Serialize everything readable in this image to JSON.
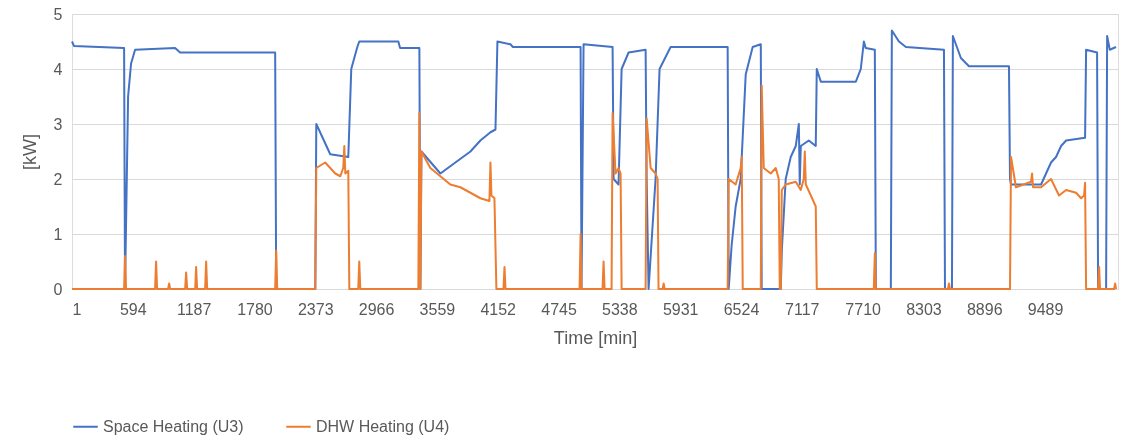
{
  "chart_data": {
    "type": "line",
    "xlabel": "Time [min]",
    "ylabel": "[kW]",
    "xlim": [
      1,
      10200
    ],
    "xticks": [
      1,
      594,
      1187,
      1780,
      2373,
      2966,
      3559,
      4152,
      4745,
      5338,
      5931,
      6524,
      7117,
      7710,
      8303,
      8896,
      9489
    ],
    "ylim": [
      0,
      5
    ],
    "yticks": [
      0,
      1,
      2,
      3,
      4,
      5
    ],
    "grid": "y",
    "legend": "bottom",
    "marker": "none",
    "line_style": "solid",
    "series": [
      {
        "name": "Space Heating (U3)",
        "color": "#4472c4",
        "x": [
          1,
          20,
          509,
          518,
          548,
          577,
          616,
          1006,
          1055,
          1982,
          1992,
          2373,
          2383,
          2519,
          2695,
          2724,
          2783,
          2802,
          3183,
          3200,
          3388,
          3398,
          3408,
          3593,
          3739,
          3886,
          3983,
          4081,
          4130,
          4149,
          4276,
          4300,
          4960,
          4969,
          4989,
          5272,
          5282,
          5330,
          5360,
          5428,
          5594,
          5604,
          5623,
          5691,
          5730,
          5838,
          6394,
          6404,
          6433,
          6472,
          6521,
          6570,
          6638,
          6717,
          6726,
          6912,
          6922,
          6960,
          7009,
          7058,
          7088,
          7097,
          7107,
          7185,
          7253,
          7263,
          7302,
          7644,
          7692,
          7722,
          7740,
          7829,
          7839,
          7985,
          7995,
          8064,
          8132,
          8503,
          8513,
          8581,
          8590,
          8668,
          8747,
          9137,
          9147,
          9157,
          9450,
          9547,
          9596,
          9645,
          9694,
          9879,
          9889,
          9996,
          10006,
          10084,
          10094,
          10120,
          10181
        ],
        "values": [
          4.5,
          4.42,
          4.38,
          0,
          3.5,
          4.1,
          4.35,
          4.38,
          4.3,
          4.3,
          0,
          0,
          3.0,
          2.45,
          2.4,
          4.0,
          4.4,
          4.5,
          4.5,
          4.38,
          4.38,
          0,
          2.5,
          2.1,
          2.3,
          2.5,
          2.7,
          2.85,
          2.9,
          4.5,
          4.45,
          4.4,
          4.4,
          0,
          4.45,
          4.4,
          2.0,
          1.9,
          4.0,
          4.3,
          4.35,
          2.0,
          0,
          2.0,
          4.0,
          4.4,
          4.4,
          0,
          0.8,
          1.5,
          2.0,
          3.9,
          4.4,
          4.45,
          0,
          0,
          0.7,
          2.0,
          2.4,
          2.6,
          3.0,
          1.9,
          2.6,
          2.7,
          2.6,
          4.0,
          3.77,
          3.77,
          4.0,
          4.5,
          4.38,
          4.35,
          0,
          0,
          4.7,
          4.5,
          4.4,
          4.35,
          0,
          0,
          4.6,
          4.2,
          4.05,
          4.05,
          2.0,
          1.9,
          1.9,
          2.3,
          2.4,
          2.6,
          2.7,
          2.75,
          4.35,
          4.3,
          0,
          0,
          4.6,
          4.35,
          4.4
        ]
      },
      {
        "name": "DHW Heating (U4)",
        "color": "#ed7d31",
        "x": [
          1,
          509,
          518,
          528,
          811,
          821,
          831,
          938,
          948,
          958,
          1104,
          1114,
          1124,
          1202,
          1211,
          1221,
          1299,
          1309,
          1319,
          1982,
          1992,
          2002,
          2373,
          2383,
          2470,
          2568,
          2617,
          2646,
          2656,
          2666,
          2695,
          2705,
          2792,
          2802,
          2812,
          3378,
          3388,
          3398,
          3408,
          3495,
          3593,
          3690,
          3788,
          3886,
          3983,
          4071,
          4081,
          4091,
          4120,
          4139,
          4208,
          4218,
          4228,
          4950,
          4960,
          4969,
          5174,
          5184,
          5194,
          5262,
          5272,
          5301,
          5330,
          5350,
          5360,
          5594,
          5604,
          5643,
          5691,
          5711,
          5720,
          5760,
          5770,
          5779,
          6394,
          6404,
          6472,
          6521,
          6531,
          6541,
          6717,
          6726,
          6746,
          6814,
          6863,
          6892,
          6902,
          6912,
          6922,
          6960,
          7058,
          7107,
          7136,
          7146,
          7156,
          7205,
          7253,
          7263,
          7819,
          7829,
          7839,
          8542,
          8552,
          8561,
          9147,
          9157,
          9205,
          9352,
          9362,
          9372,
          9450,
          9547,
          9625,
          9694,
          9791,
          9840,
          9869,
          9879,
          9889,
          10006,
          10016,
          10025,
          10162,
          10172,
          10181
        ],
        "values": [
          0,
          0,
          0.6,
          0,
          0,
          0.5,
          0,
          0,
          0.1,
          0,
          0,
          0.3,
          0,
          0,
          0.4,
          0,
          0,
          0.5,
          0,
          0,
          0.7,
          0,
          0,
          2.2,
          2.3,
          2.1,
          2.05,
          2.2,
          2.6,
          2.1,
          2.15,
          0,
          0,
          0.5,
          0,
          0,
          3.2,
          0,
          2.5,
          2.2,
          2.05,
          1.9,
          1.85,
          1.75,
          1.65,
          1.6,
          2.3,
          1.7,
          1.65,
          0,
          0,
          0.4,
          0,
          0,
          1.0,
          0,
          0,
          0.5,
          0,
          0,
          3.2,
          2.1,
          2.2,
          2.1,
          0,
          0,
          3.1,
          2.2,
          2.1,
          2.0,
          0,
          0,
          0.1,
          0,
          0,
          2.0,
          1.9,
          2.2,
          2.4,
          0,
          0,
          3.7,
          2.2,
          2.1,
          2.2,
          2.0,
          0,
          0,
          1.8,
          1.9,
          1.95,
          1.8,
          2.0,
          2.5,
          1.9,
          1.7,
          1.5,
          0,
          0,
          0.65,
          0,
          0,
          0.1,
          0,
          0,
          2.4,
          1.85,
          1.95,
          2.1,
          1.85,
          1.85,
          2.0,
          1.7,
          1.8,
          1.75,
          1.65,
          1.7,
          1.93,
          0,
          0,
          0.4,
          0,
          0,
          0.1,
          0
        ]
      }
    ]
  }
}
